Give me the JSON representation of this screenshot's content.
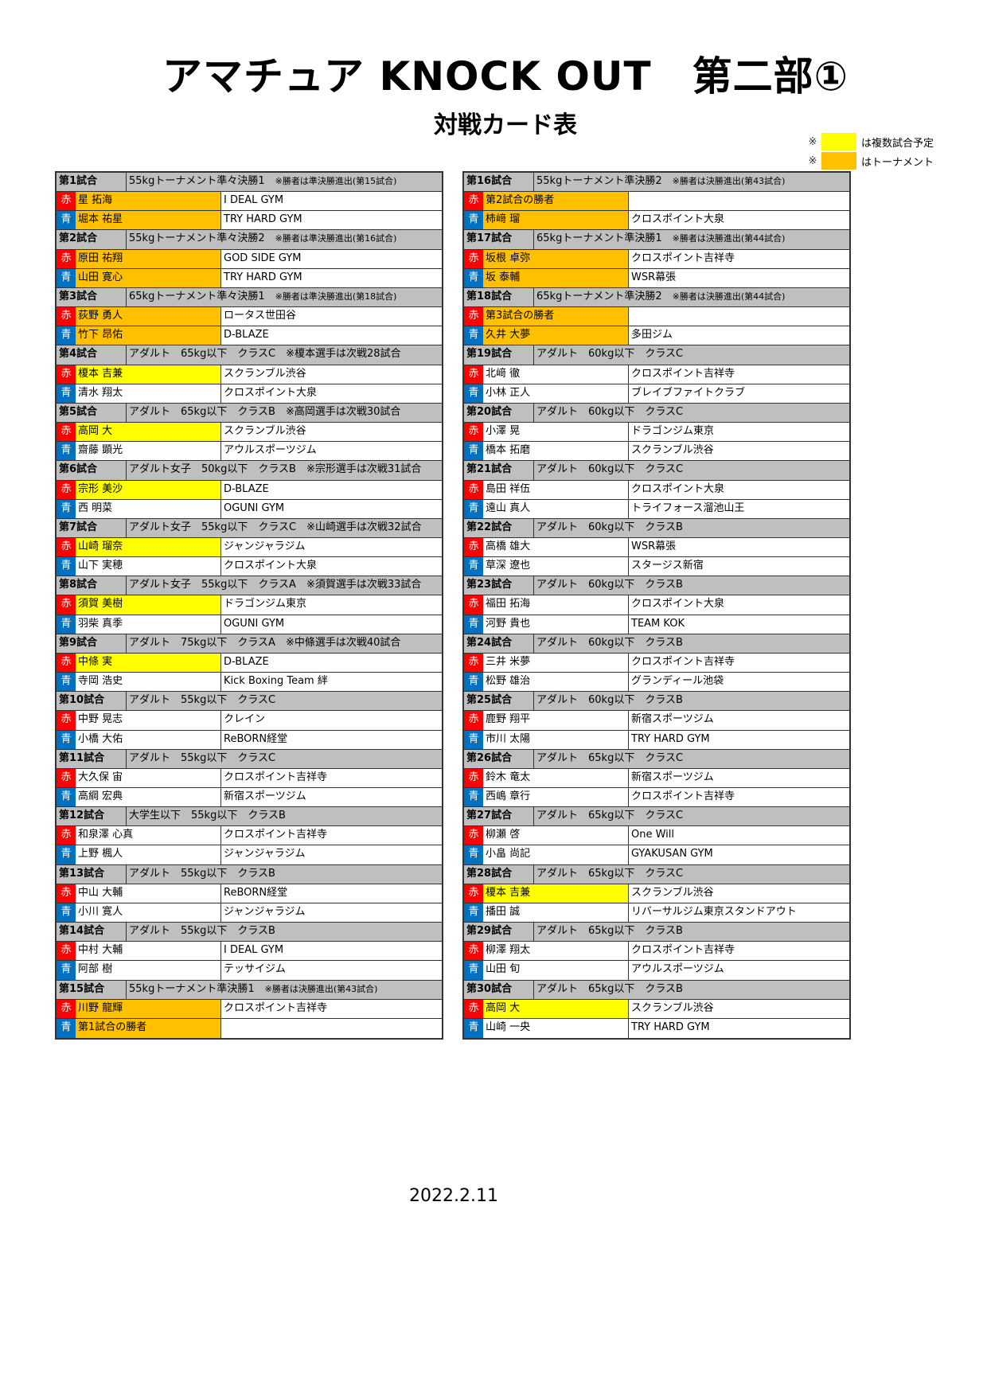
{
  "title": "アマチュア KNOCK OUT　第二部①",
  "subtitle": "対戦カード表",
  "legend": [
    {
      "mark": "※",
      "color": "#FFFF00",
      "label": "は複数試合予定"
    },
    {
      "mark": "※",
      "color": "#FFC000",
      "label": "はトーナメント"
    }
  ],
  "colors": {
    "red_corner": "#FF0000",
    "blue_corner": "#0070C0",
    "header": "#BFBFBF",
    "tournament": "#FFC000",
    "multiple": "#FFFF00"
  },
  "corner_labels": {
    "red": "赤",
    "blue": "青"
  },
  "columns": [
    [
      {
        "no": "第1試合",
        "desc": "55kgトーナメント準々決勝1",
        "note": "※勝者は準決勝進出(第15試合)",
        "red": {
          "name": "星 拓海",
          "gym": "I DEAL GYM",
          "hl": "tournament"
        },
        "blue": {
          "name": "堀本 祐星",
          "gym": "TRY HARD GYM",
          "hl": "tournament"
        }
      },
      {
        "no": "第2試合",
        "desc": "55kgトーナメント準々決勝2",
        "note": "※勝者は準決勝進出(第16試合)",
        "red": {
          "name": "原田 祐翔",
          "gym": "GOD SIDE GYM",
          "hl": "tournament"
        },
        "blue": {
          "name": "山田 寛心",
          "gym": "TRY HARD GYM",
          "hl": "tournament"
        }
      },
      {
        "no": "第3試合",
        "desc": "65kgトーナメント準々決勝1",
        "note": "※勝者は準決勝進出(第18試合)",
        "red": {
          "name": "荻野 勇人",
          "gym": "ロータス世田谷",
          "hl": "tournament"
        },
        "blue": {
          "name": "竹下 昂佑",
          "gym": "D-BLAZE",
          "hl": "tournament"
        }
      },
      {
        "no": "第4試合",
        "desc": "アダルト　65kg以下　クラスC　※榎本選手は次戦28試合",
        "note": "",
        "red": {
          "name": "榎本 吉兼",
          "gym": "スクランブル渋谷",
          "hl": "multiple"
        },
        "blue": {
          "name": "清水 翔太",
          "gym": "クロスポイント大泉",
          "hl": ""
        }
      },
      {
        "no": "第5試合",
        "desc": "アダルト　65kg以下　クラスB　※高岡選手は次戦30試合",
        "note": "",
        "red": {
          "name": "高岡 大",
          "gym": "スクランブル渋谷",
          "hl": "multiple"
        },
        "blue": {
          "name": "齋藤 顕光",
          "gym": "アウルスポーツジム",
          "hl": ""
        }
      },
      {
        "no": "第6試合",
        "desc": "アダルト女子　50kg以下　クラスB　※宗形選手は次戦31試合",
        "note": "",
        "red": {
          "name": "宗形 美沙",
          "gym": "D-BLAZE",
          "hl": "multiple"
        },
        "blue": {
          "name": "西 明菜",
          "gym": "OGUNI GYM",
          "hl": ""
        }
      },
      {
        "no": "第7試合",
        "desc": "アダルト女子　55kg以下　クラスC　※山崎選手は次戦32試合",
        "note": "",
        "red": {
          "name": "山崎 瑠奈",
          "gym": "ジャンジャラジム",
          "hl": "multiple"
        },
        "blue": {
          "name": "山下 実穂",
          "gym": "クロスポイント大泉",
          "hl": ""
        }
      },
      {
        "no": "第8試合",
        "desc": "アダルト女子　55kg以下　クラスA　※須賀選手は次戦33試合",
        "note": "",
        "red": {
          "name": "須賀 美樹",
          "gym": "ドラゴンジム東京",
          "hl": "multiple"
        },
        "blue": {
          "name": "羽柴 真季",
          "gym": "OGUNI GYM",
          "hl": ""
        }
      },
      {
        "no": "第9試合",
        "desc": "アダルト　75kg以下　クラスA　※中條選手は次戦40試合",
        "note": "",
        "red": {
          "name": "中條 実",
          "gym": "D-BLAZE",
          "hl": "multiple"
        },
        "blue": {
          "name": "寺岡 浩史",
          "gym": "Kick Boxing Team 絆",
          "hl": ""
        }
      },
      {
        "no": "第10試合",
        "desc": "アダルト　55kg以下　クラスC",
        "note": "",
        "red": {
          "name": "中野 晃志",
          "gym": "クレイン",
          "hl": ""
        },
        "blue": {
          "name": "小橋 大佑",
          "gym": "ReBORN経堂",
          "hl": ""
        }
      },
      {
        "no": "第11試合",
        "desc": "アダルト　55kg以下　クラスC",
        "note": "",
        "red": {
          "name": "大久保 宙",
          "gym": "クロスポイント吉祥寺",
          "hl": ""
        },
        "blue": {
          "name": "高綱 宏典",
          "gym": "新宿スポーツジム",
          "hl": ""
        }
      },
      {
        "no": "第12試合",
        "desc": "大学生以下　55kg以下　クラスB",
        "note": "",
        "red": {
          "name": "和泉澤 心真",
          "gym": "クロスポイント吉祥寺",
          "hl": ""
        },
        "blue": {
          "name": "上野 楓人",
          "gym": "ジャンジャラジム",
          "hl": ""
        }
      },
      {
        "no": "第13試合",
        "desc": "アダルト　55kg以下　クラスB",
        "note": "",
        "red": {
          "name": "中山 大輔",
          "gym": "ReBORN経堂",
          "hl": ""
        },
        "blue": {
          "name": "小川 寛人",
          "gym": "ジャンジャラジム",
          "hl": ""
        }
      },
      {
        "no": "第14試合",
        "desc": "アダルト　55kg以下　クラスB",
        "note": "",
        "red": {
          "name": "中村 大輔",
          "gym": "I DEAL GYM",
          "hl": ""
        },
        "blue": {
          "name": "阿部 樹",
          "gym": "テッサイジム",
          "hl": ""
        }
      },
      {
        "no": "第15試合",
        "desc": "55kgトーナメント準決勝1",
        "note": "※勝者は決勝進出(第43試合)",
        "red": {
          "name": "川野 龍輝",
          "gym": "クロスポイント吉祥寺",
          "hl": "tournament"
        },
        "blue": {
          "name": "第1試合の勝者",
          "gym": "",
          "hl": "tournament"
        }
      }
    ],
    [
      {
        "no": "第16試合",
        "desc": "55kgトーナメント準決勝2",
        "note": "※勝者は決勝進出(第43試合)",
        "red": {
          "name": "第2試合の勝者",
          "gym": "",
          "hl": "tournament"
        },
        "blue": {
          "name": "柿﨑 瑠",
          "gym": "クロスポイント大泉",
          "hl": "tournament"
        }
      },
      {
        "no": "第17試合",
        "desc": "65kgトーナメント準決勝1",
        "note": "※勝者は決勝進出(第44試合)",
        "red": {
          "name": "坂根 卓弥",
          "gym": "クロスポイント吉祥寺",
          "hl": "tournament"
        },
        "blue": {
          "name": "坂 泰輔",
          "gym": "WSR幕張",
          "hl": "tournament"
        }
      },
      {
        "no": "第18試合",
        "desc": "65kgトーナメント準決勝2",
        "note": "※勝者は決勝進出(第44試合)",
        "red": {
          "name": "第3試合の勝者",
          "gym": "",
          "hl": "tournament"
        },
        "blue": {
          "name": "久井 大夢",
          "gym": "多田ジム",
          "hl": "tournament"
        }
      },
      {
        "no": "第19試合",
        "desc": "アダルト　60kg以下　クラスC",
        "note": "",
        "red": {
          "name": "北﨑 徹",
          "gym": "クロスポイント吉祥寺",
          "hl": ""
        },
        "blue": {
          "name": "小林 正人",
          "gym": "ブレイブファイトクラブ",
          "hl": ""
        }
      },
      {
        "no": "第20試合",
        "desc": "アダルト　60kg以下　クラスC",
        "note": "",
        "red": {
          "name": "小澤 晃",
          "gym": "ドラゴンジム東京",
          "hl": ""
        },
        "blue": {
          "name": "橋本 拓磨",
          "gym": "スクランブル渋谷",
          "hl": ""
        }
      },
      {
        "no": "第21試合",
        "desc": "アダルト　60kg以下　クラスC",
        "note": "",
        "red": {
          "name": "島田 祥伍",
          "gym": "クロスポイント大泉",
          "hl": ""
        },
        "blue": {
          "name": "遠山 真人",
          "gym": "トライフォース溜池山王",
          "hl": ""
        }
      },
      {
        "no": "第22試合",
        "desc": "アダルト　60kg以下　クラスB",
        "note": "",
        "red": {
          "name": "高橋 雄大",
          "gym": "WSR幕張",
          "hl": ""
        },
        "blue": {
          "name": "草深 遼也",
          "gym": "スタージス新宿",
          "hl": ""
        }
      },
      {
        "no": "第23試合",
        "desc": "アダルト　60kg以下　クラスB",
        "note": "",
        "red": {
          "name": "福田 拓海",
          "gym": "クロスポイント大泉",
          "hl": ""
        },
        "blue": {
          "name": "河野 貴也",
          "gym": "TEAM KOK",
          "hl": ""
        }
      },
      {
        "no": "第24試合",
        "desc": "アダルト　60kg以下　クラスB",
        "note": "",
        "red": {
          "name": "三井 米夢",
          "gym": "クロスポイント吉祥寺",
          "hl": ""
        },
        "blue": {
          "name": "松野 雄治",
          "gym": "グランディール池袋",
          "hl": ""
        }
      },
      {
        "no": "第25試合",
        "desc": "アダルト　60kg以下　クラスB",
        "note": "",
        "red": {
          "name": "鹿野 翔平",
          "gym": "新宿スポーツジム",
          "hl": ""
        },
        "blue": {
          "name": "市川 太陽",
          "gym": "TRY HARD GYM",
          "hl": ""
        }
      },
      {
        "no": "第26試合",
        "desc": "アダルト　65kg以下　クラスC",
        "note": "",
        "red": {
          "name": "鈴木 竜太",
          "gym": "新宿スポーツジム",
          "hl": ""
        },
        "blue": {
          "name": "西嶋 章行",
          "gym": "クロスポイント吉祥寺",
          "hl": ""
        }
      },
      {
        "no": "第27試合",
        "desc": "アダルト　65kg以下　クラスC",
        "note": "",
        "red": {
          "name": "柳瀬 啓",
          "gym": "One Will",
          "hl": ""
        },
        "blue": {
          "name": "小畠 尚記",
          "gym": "GYAKUSAN GYM",
          "hl": ""
        }
      },
      {
        "no": "第28試合",
        "desc": "アダルト　65kg以下　クラスC",
        "note": "",
        "red": {
          "name": "榎本 吉兼",
          "gym": "スクランブル渋谷",
          "hl": "multiple"
        },
        "blue": {
          "name": "播田 誠",
          "gym": "リバーサルジム東京スタンドアウト",
          "hl": ""
        }
      },
      {
        "no": "第29試合",
        "desc": "アダルト　65kg以下　クラスB",
        "note": "",
        "red": {
          "name": "柳澤 翔太",
          "gym": "クロスポイント吉祥寺",
          "hl": ""
        },
        "blue": {
          "name": "山田 旬",
          "gym": "アウルスポーツジム",
          "hl": ""
        }
      },
      {
        "no": "第30試合",
        "desc": "アダルト　65kg以下　クラスB",
        "note": "",
        "red": {
          "name": "高岡 大",
          "gym": "スクランブル渋谷",
          "hl": "multiple"
        },
        "blue": {
          "name": "山崎 一央",
          "gym": "TRY HARD GYM",
          "hl": ""
        }
      }
    ]
  ],
  "date": "2022.2.11"
}
